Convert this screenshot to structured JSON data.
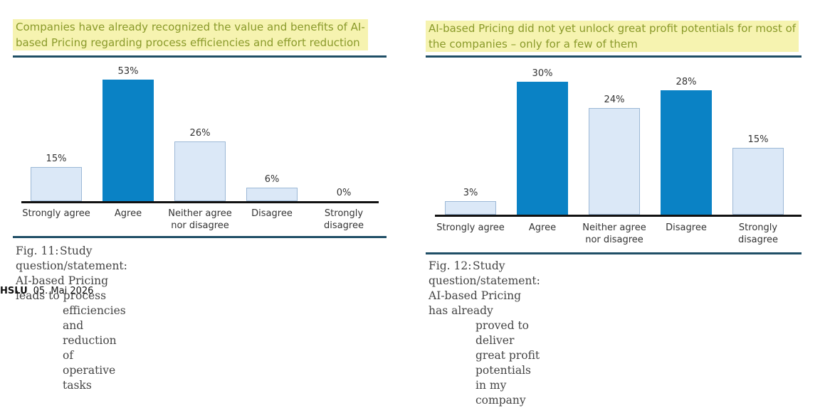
{
  "chart_data": [
    {
      "type": "bar",
      "title": "Companies have already recognized the value and benefits of AI-based Pricing regarding process efficiencies and effort reduction",
      "title_lines": [
        "Companies have already recognized the value and benefits of AI-",
        "based Pricing regarding process efficiencies and effort reduction"
      ],
      "categories": [
        "Strongly agree",
        "Agree",
        "Neither agree\nnor disagree",
        "Disagree",
        "Strongly\ndisagree"
      ],
      "values": [
        15,
        53,
        26,
        6,
        0
      ],
      "value_labels": [
        "15%",
        "53%",
        "26%",
        "6%",
        "0%"
      ],
      "highlight": [
        false,
        true,
        false,
        false,
        false
      ],
      "caption_num": "Fig. 11:",
      "caption_lines": [
        "Study question/statement: AI-based Pricing leads to process",
        "efficiencies and reduction of operative tasks"
      ]
    },
    {
      "type": "bar",
      "title": "AI-based Pricing did not yet unlock great profit potentials for most of the companies – only for a few of them",
      "title_lines": [
        "AI-based Pricing did not yet unlock great profit potentials for most of",
        "the companies – only for a few of them"
      ],
      "categories": [
        "Strongly agree",
        "Agree",
        "Neither agree\nnor disagree",
        "Disagree",
        "Strongly\ndisagree"
      ],
      "values": [
        3,
        30,
        24,
        28,
        15
      ],
      "value_labels": [
        "3%",
        "30%",
        "24%",
        "28%",
        "15%"
      ],
      "highlight": [
        false,
        true,
        false,
        true,
        false
      ],
      "caption_num": "Fig. 12:",
      "caption_lines": [
        "Study question/statement: AI-based Pricing has already",
        "proved to deliver great profit potentials in my company"
      ]
    }
  ],
  "colors": {
    "highlight_bar": "#0a82c5",
    "light_bar": "#dbe8f7",
    "headline_bg": "#f6f3b0",
    "headline_text": "#8a9a2a",
    "rule": "#1f4e66"
  },
  "footer": {
    "logo": "HSLU",
    "date": "05. Mai 2026"
  }
}
